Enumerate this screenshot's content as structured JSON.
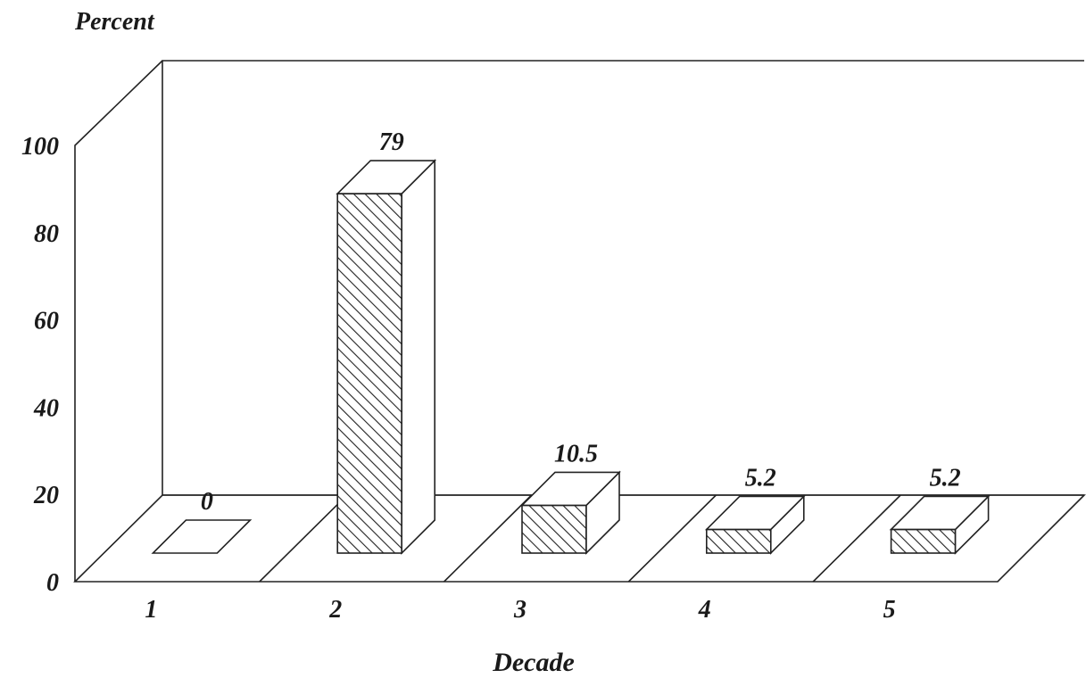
{
  "chart_data": {
    "type": "bar",
    "style": "3d",
    "title": "",
    "ylabel": "Percent",
    "xlabel": "Decade",
    "categories": [
      "1",
      "2",
      "3",
      "4",
      "5"
    ],
    "values": [
      0,
      79,
      10.5,
      5.2,
      5.2
    ],
    "data_labels": [
      "0",
      "79",
      "10.5",
      "5.2",
      "5.2"
    ],
    "yticks": [
      "0",
      "20",
      "40",
      "60",
      "80",
      "100"
    ],
    "ytick_values": [
      0,
      20,
      40,
      60,
      80,
      100
    ],
    "ylim": [
      0,
      100
    ],
    "grid": false,
    "legend": "none",
    "bar_fill": "diagonal-hatch",
    "colors": {
      "line": "#222222",
      "background": "#ffffff"
    }
  }
}
